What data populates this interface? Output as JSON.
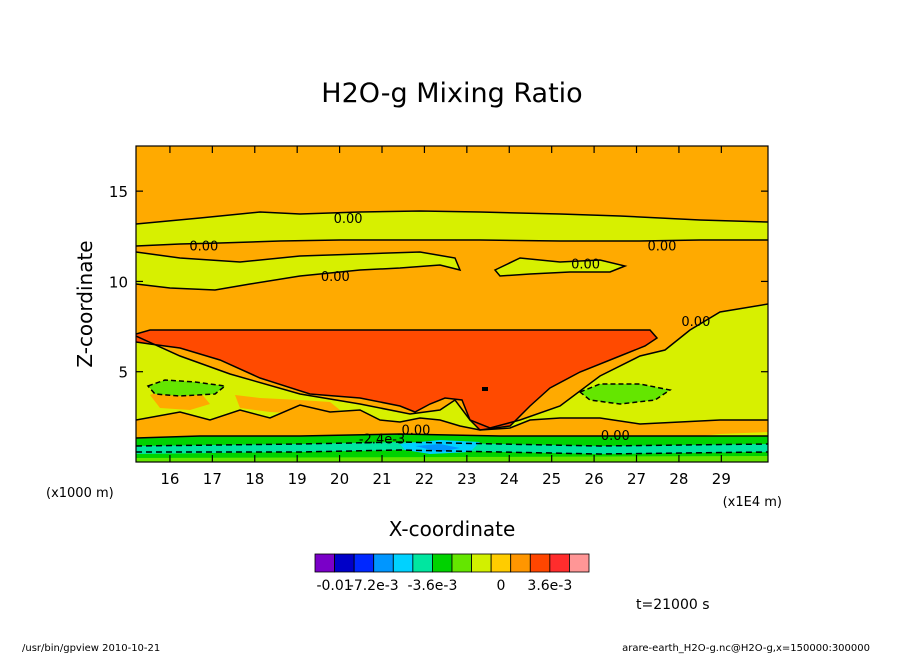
{
  "chart_data": {
    "type": "heatmap",
    "title": "H2O-g Mixing Ratio",
    "xlabel": "X-coordinate",
    "ylabel": "Z-coordinate",
    "x_unit_label": "(x1E4 m)",
    "y_unit_label": "(x1000 m)",
    "xlim": [
      15.2,
      30.1
    ],
    "ylim": [
      0,
      17.5
    ],
    "x_ticks": [
      16,
      17,
      18,
      19,
      20,
      21,
      22,
      23,
      24,
      25,
      26,
      27,
      28,
      29
    ],
    "y_ticks": [
      5,
      10,
      15
    ],
    "contour_labels": [
      {
        "text": "0.00",
        "x": 20.2,
        "y": 13.5
      },
      {
        "text": "0.00",
        "x": 16.8,
        "y": 12.0
      },
      {
        "text": "0.00",
        "x": 27.6,
        "y": 12.0
      },
      {
        "text": "0.00",
        "x": 19.9,
        "y": 10.3
      },
      {
        "text": "0.00",
        "x": 25.8,
        "y": 11.0
      },
      {
        "text": "0.00",
        "x": 28.4,
        "y": 7.8
      },
      {
        "text": "0.00",
        "x": 21.8,
        "y": 1.8
      },
      {
        "text": "0.00",
        "x": 26.5,
        "y": 1.5
      },
      {
        "text": "-2.4e-3",
        "x": 21.0,
        "y": 1.3
      }
    ],
    "colorbar": {
      "colors": [
        "#7a00c8",
        "#0000c8",
        "#0028ff",
        "#0096ff",
        "#00d2ff",
        "#00e6a0",
        "#00d200",
        "#64e600",
        "#d2f000",
        "#ffcc00",
        "#ff9600",
        "#ff4600",
        "#ff2d2d",
        "#ff9696"
      ],
      "labels": [
        "-0.01",
        "-7.2e-3",
        "-3.6e-3",
        "0",
        "3.6e-3"
      ]
    },
    "time_label": "t=21000 s"
  },
  "footer": {
    "left": "/usr/bin/gpview   2010-10-21",
    "right": "arare-earth_H2O-g.nc@H2O-g,x=150000:300000"
  }
}
